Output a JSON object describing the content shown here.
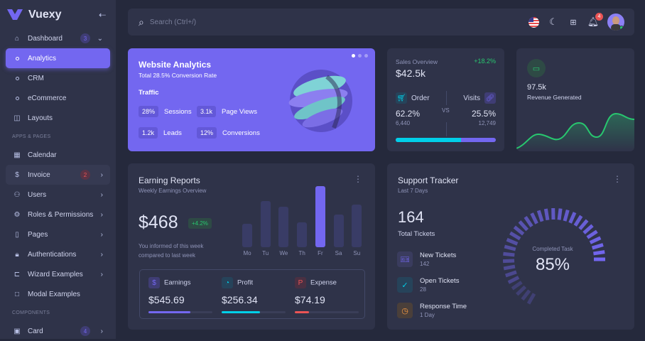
{
  "app": {
    "name": "Vuexy"
  },
  "sidebar": {
    "items": [
      {
        "label": "Dashboard",
        "icon": "smart-home-icon",
        "badge": "3"
      },
      {
        "label": "Analytics",
        "active": true
      },
      {
        "label": "CRM"
      },
      {
        "label": "eCommerce"
      },
      {
        "label": "Layouts",
        "icon": "layout-icon"
      }
    ],
    "section1": "APPS & PAGES",
    "apps": [
      {
        "label": "Calendar",
        "icon": "calendar-icon"
      },
      {
        "label": "Invoice",
        "icon": "file-dollar-icon",
        "badge": "2"
      },
      {
        "label": "Users",
        "icon": "users-icon"
      },
      {
        "label": "Roles & Permissions",
        "icon": "settings-icon"
      },
      {
        "label": "Pages",
        "icon": "file-icon"
      },
      {
        "label": "Authentications",
        "icon": "lock-icon"
      },
      {
        "label": "Wizard Examples",
        "icon": "wizard-icon"
      },
      {
        "label": "Modal Examples",
        "icon": "square-icon"
      }
    ],
    "section2": "COMPONENTS",
    "components": [
      {
        "label": "Card",
        "icon": "id-card-icon",
        "badge": "4"
      }
    ]
  },
  "header": {
    "search_placeholder": "Search (Ctrl+/)",
    "notifications": "4"
  },
  "analytics": {
    "title": "Website Analytics",
    "subtitle": "Total 28.5% Conversion Rate",
    "traffic": "Traffic",
    "stats": [
      {
        "value": "28%",
        "label": "Sessions"
      },
      {
        "value": "3.1k",
        "label": "Page Views"
      },
      {
        "value": "1.2k",
        "label": "Leads"
      },
      {
        "value": "12%",
        "label": "Conversions"
      }
    ]
  },
  "sales": {
    "title": "Sales Overview",
    "value": "$42.5k",
    "change": "+18.2%",
    "order_label": "Order",
    "order_pct": "62.2%",
    "order_count": "6,440",
    "vs": "VS",
    "visits_label": "Visits",
    "visits_pct": "25.5%",
    "visits_count": "12,749",
    "order_fraction": 0.655
  },
  "revenue": {
    "value": "97.5k",
    "label": "Revenue Generated"
  },
  "earning": {
    "title": "Earning Reports",
    "subtitle": "Weekly Earnings Overview",
    "value": "$468",
    "change": "+4.2%",
    "note1": "You informed of this week",
    "note2": "compared to last week",
    "chart_data": {
      "type": "bar",
      "categories": [
        "Mo",
        "Tu",
        "We",
        "Th",
        "Fr",
        "Sa",
        "Su"
      ],
      "values": [
        38,
        76,
        66,
        41,
        100,
        54,
        70
      ],
      "highlight": "Fr"
    },
    "legend": [
      {
        "label": "Earnings",
        "value": "$545.69",
        "progress": 0.65,
        "color": "#7367f0"
      },
      {
        "label": "Profit",
        "value": "$256.34",
        "progress": 0.6,
        "color": "#00cfe8"
      },
      {
        "label": "Expense",
        "value": "$74.19",
        "progress": 0.22,
        "color": "#ea5455"
      }
    ]
  },
  "support": {
    "title": "Support Tracker",
    "subtitle": "Last 7 Days",
    "total": "164",
    "total_label": "Total Tickets",
    "items": [
      {
        "label": "New Tickets",
        "value": "142"
      },
      {
        "label": "Open Tickets",
        "value": "28"
      },
      {
        "label": "Response Time",
        "value": "1 Day"
      }
    ],
    "gauge_label": "Completed Task",
    "gauge_value": "85%",
    "gauge_fraction": 0.85
  }
}
